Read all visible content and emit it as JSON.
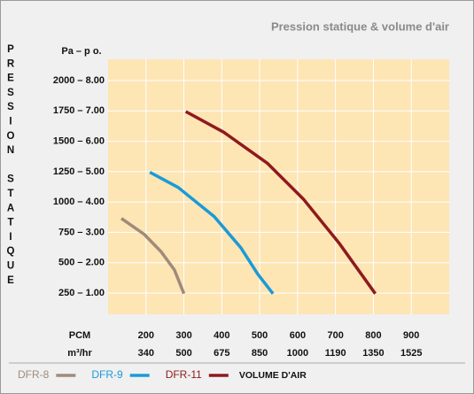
{
  "chart_data": {
    "type": "line",
    "title": "Pression statique & volume d'air",
    "y_label": "PRESSION STATIQUE",
    "y_unit": "Pa – p o.",
    "x_unit": "PCM",
    "x2_unit": "m³/hr",
    "x_label": "VOLUME D'AIR",
    "xlim": [
      100,
      1000
    ],
    "xticks": [
      200,
      300,
      400,
      500,
      600,
      700,
      800,
      900
    ],
    "x2_tick_labels": [
      340,
      500,
      675,
      850,
      1000,
      1190,
      1350,
      1525
    ],
    "ylim": [
      75,
      2175
    ],
    "yticks": [
      {
        "value": 250,
        "label": "250 – 1.00"
      },
      {
        "value": 500,
        "label": "500 – 2.00"
      },
      {
        "value": 750,
        "label": "750 – 3.00"
      },
      {
        "value": 1000,
        "label": "1000 – 4.00"
      },
      {
        "value": 1250,
        "label": "1250 – 5.00"
      },
      {
        "value": 1500,
        "label": "1500 – 6.00"
      },
      {
        "value": 1750,
        "label": "1750 – 7.00"
      },
      {
        "value": 2000,
        "label": "2000 – 8.00"
      }
    ],
    "grid": true,
    "plot_background": "#fde5b4",
    "series": [
      {
        "name": "DFR-8",
        "color": "#a08b7a",
        "x": [
          135,
          195,
          240,
          275,
          300
        ],
        "values": [
          865,
          735,
          590,
          440,
          245
        ]
      },
      {
        "name": "DFR-9",
        "color": "#1b9ad7",
        "x": [
          210,
          285,
          380,
          450,
          495,
          535
        ],
        "values": [
          1245,
          1120,
          880,
          625,
          405,
          245
        ]
      },
      {
        "name": "DFR-11",
        "color": "#8e1a1e",
        "x": [
          305,
          405,
          520,
          615,
          710,
          805
        ],
        "values": [
          1745,
          1575,
          1320,
          1025,
          660,
          245
        ]
      }
    ]
  }
}
